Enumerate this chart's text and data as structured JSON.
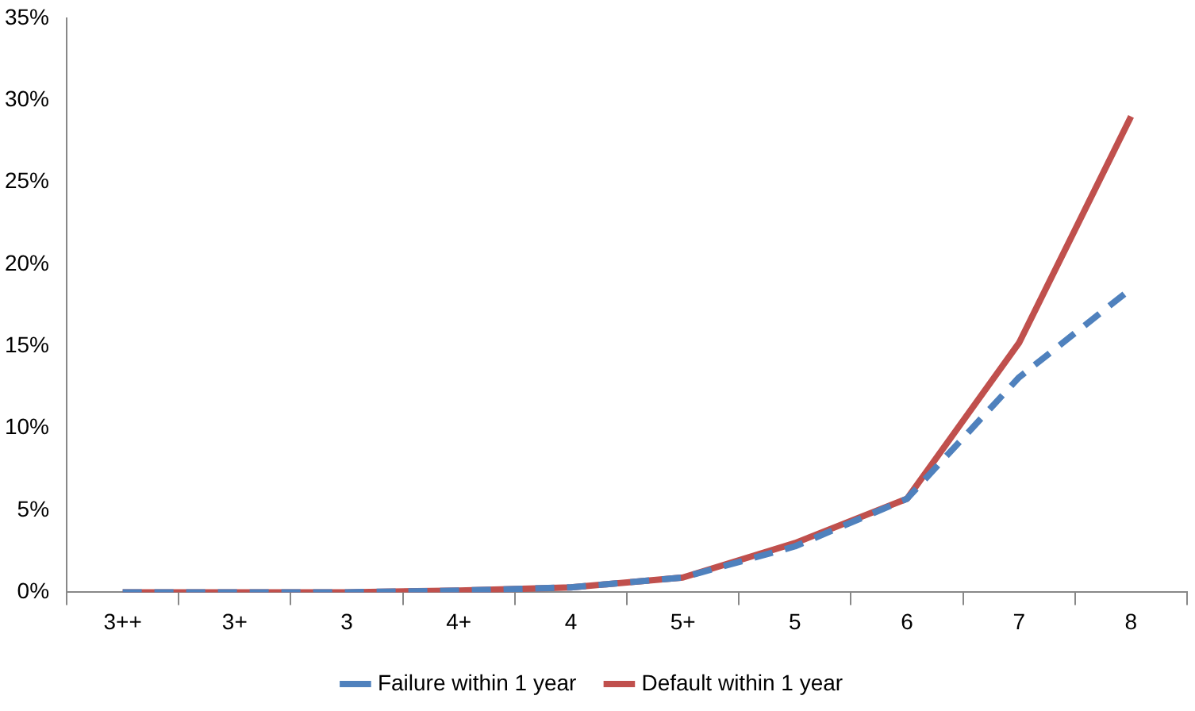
{
  "chart_data": {
    "type": "line",
    "categories": [
      "3++",
      "3+",
      "3",
      "4+",
      "4",
      "5+",
      "5",
      "6",
      "7",
      "8"
    ],
    "series": [
      {
        "name": "Failure within 1 year",
        "color": "#4f81bd",
        "line_style": "dashed",
        "values": [
          0,
          0,
          0,
          0.1,
          0.3,
          0.9,
          2.8,
          5.7,
          13.1,
          18.5
        ]
      },
      {
        "name": "Default within 1 year",
        "color": "#c0504d",
        "line_style": "solid",
        "values": [
          0,
          0,
          0,
          0.1,
          0.3,
          0.9,
          3.0,
          5.7,
          15.2,
          29.0
        ]
      }
    ],
    "ylim": [
      0,
      35
    ],
    "yticks": [
      {
        "value": 0,
        "label": "0%"
      },
      {
        "value": 5,
        "label": "5%"
      },
      {
        "value": 10,
        "label": "10%"
      },
      {
        "value": 15,
        "label": "15%"
      },
      {
        "value": 20,
        "label": "20%"
      },
      {
        "value": 25,
        "label": "25%"
      },
      {
        "value": 30,
        "label": "30%"
      },
      {
        "value": 35,
        "label": "35%"
      }
    ],
    "grid": false,
    "legend": "bottom",
    "marker": "none"
  }
}
